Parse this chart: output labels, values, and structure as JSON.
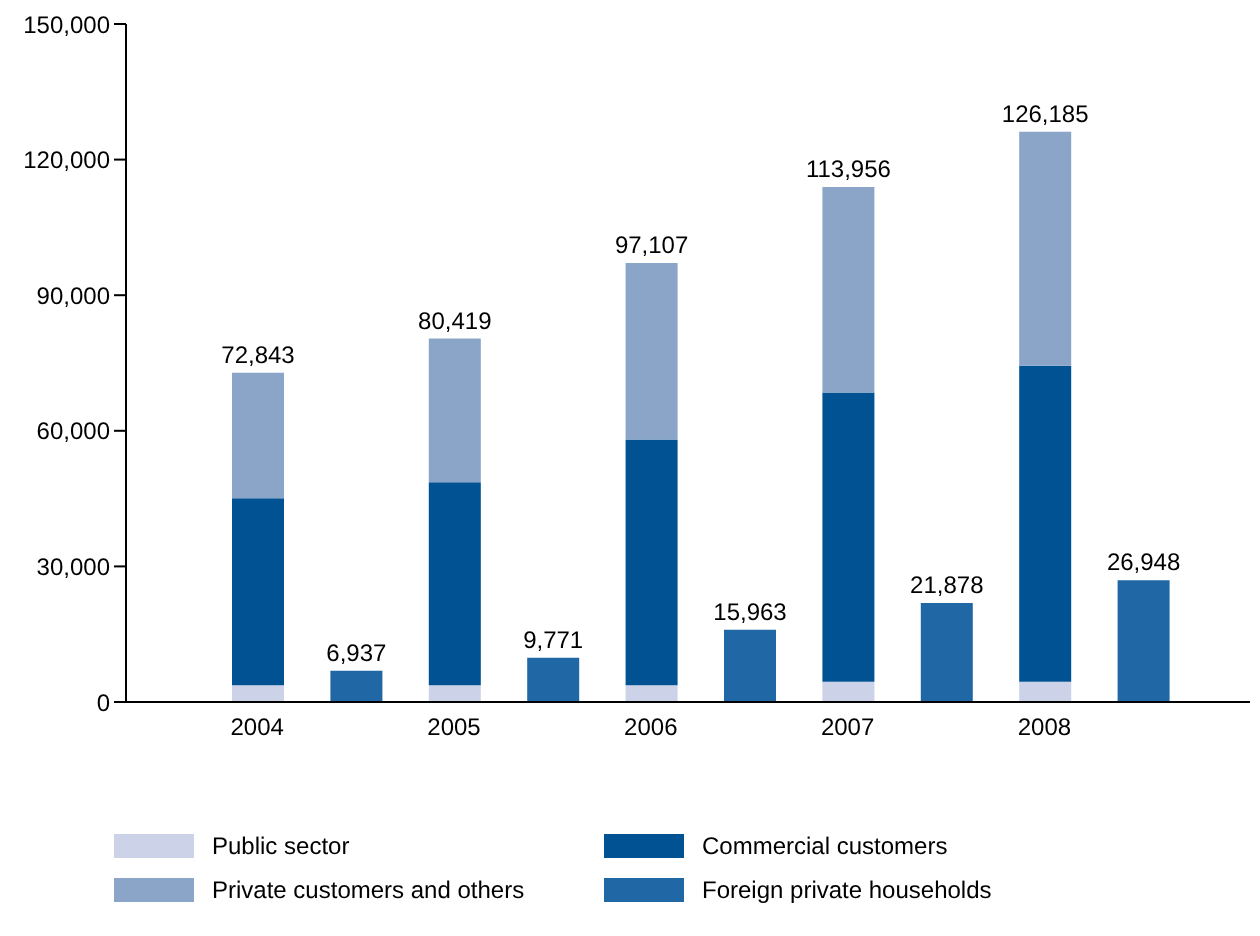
{
  "chart_data": {
    "type": "bar",
    "stacked": true,
    "categories": [
      "2004",
      null,
      "2005",
      null,
      "2006",
      null,
      "2007",
      null,
      "2008",
      null
    ],
    "series": [
      {
        "name": "Public sector",
        "color": "#ccd3e8",
        "values": [
          3700,
          null,
          3700,
          null,
          3700,
          null,
          4500,
          null,
          4500,
          null
        ]
      },
      {
        "name": "Commercial customers",
        "color": "#005293",
        "values": [
          41400,
          null,
          44900,
          null,
          54400,
          null,
          64000,
          null,
          69900,
          null
        ]
      },
      {
        "name": "Private customers and others",
        "color": "#8ba5c9",
        "values": [
          27743,
          null,
          31819,
          null,
          39007,
          null,
          45456,
          null,
          51785,
          null
        ]
      },
      {
        "name": "Foreign private households",
        "color": "#2068a5",
        "values": [
          null,
          6937,
          null,
          9771,
          null,
          15963,
          null,
          21878,
          null,
          26948
        ],
        "value_labels": [
          null,
          "6,937",
          null,
          "9,771",
          null,
          "15,963",
          null,
          "21,878",
          null,
          "26,948"
        ]
      }
    ],
    "totals": [
      "72,843",
      null,
      "80,419",
      null,
      "97,107",
      null,
      "113,956",
      null,
      "126,185",
      null
    ],
    "ylim": [
      0,
      150000
    ],
    "yticks": [
      {
        "value": 0,
        "label": "0"
      },
      {
        "value": 30000,
        "label": "30,000"
      },
      {
        "value": 60000,
        "label": "60,000"
      },
      {
        "value": 90000,
        "label": "90,000"
      },
      {
        "value": 120000,
        "label": "120,000"
      },
      {
        "value": 150000,
        "label": "150,000"
      }
    ],
    "grid": false,
    "legend": "bottom"
  }
}
